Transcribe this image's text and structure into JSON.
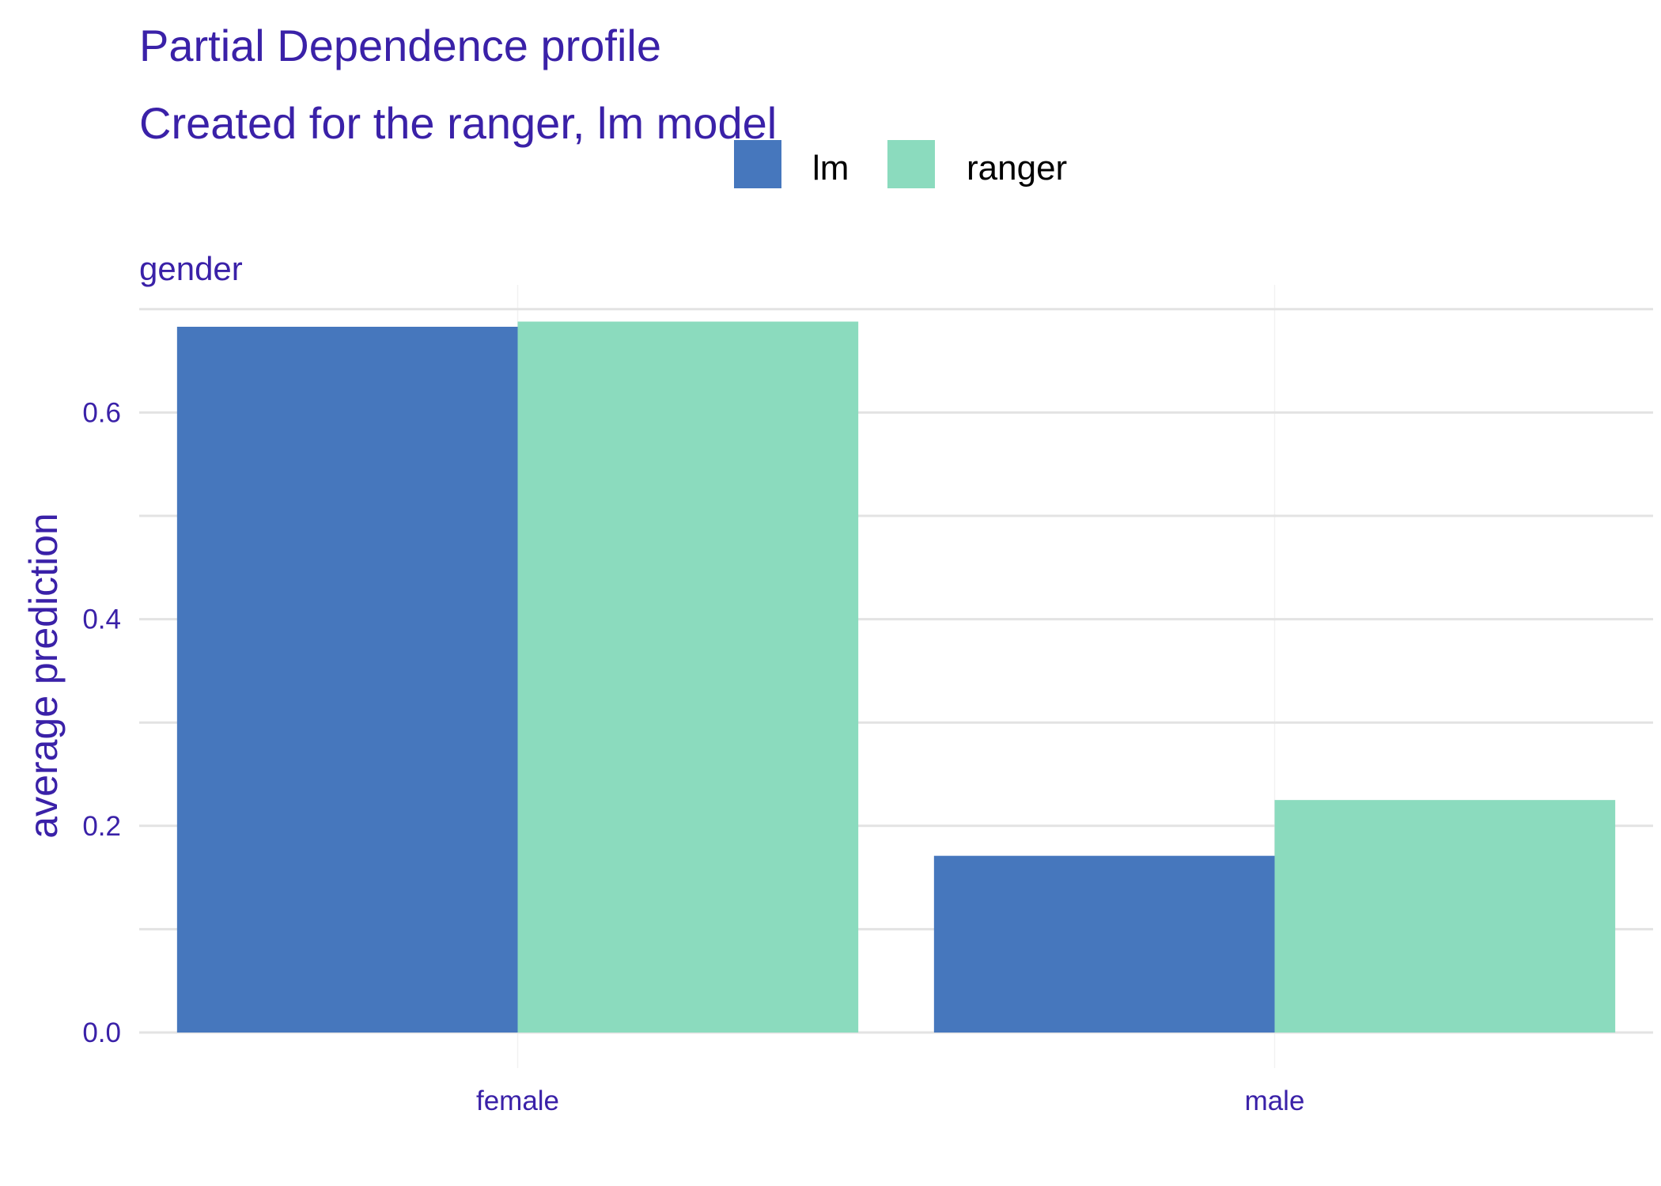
{
  "header": {
    "title": "Partial Dependence profile",
    "subtitle": "Created for the ranger, lm model"
  },
  "legend": {
    "items": [
      {
        "label": "lm",
        "color": "#4677bd"
      },
      {
        "label": "ranger",
        "color": "#8bdbbe"
      }
    ]
  },
  "facet": {
    "label": "gender"
  },
  "chart_data": {
    "type": "bar",
    "title": "Partial Dependence profile",
    "subtitle": "Created for the ranger, lm model",
    "facet": "gender",
    "xlabel": "",
    "ylabel": "average prediction",
    "categories": [
      "female",
      "male"
    ],
    "series": [
      {
        "name": "lm",
        "color": "#4677bd",
        "values": [
          0.683,
          0.171
        ]
      },
      {
        "name": "ranger",
        "color": "#8bdbbe",
        "values": [
          0.688,
          0.225
        ]
      }
    ],
    "ylim": [
      0,
      0.7
    ],
    "yticks": [
      "0.0",
      "0.2",
      "0.4",
      "0.6"
    ],
    "ytick_values": [
      0.0,
      0.2,
      0.4,
      0.6
    ],
    "grid": true,
    "legend_position": "top"
  }
}
